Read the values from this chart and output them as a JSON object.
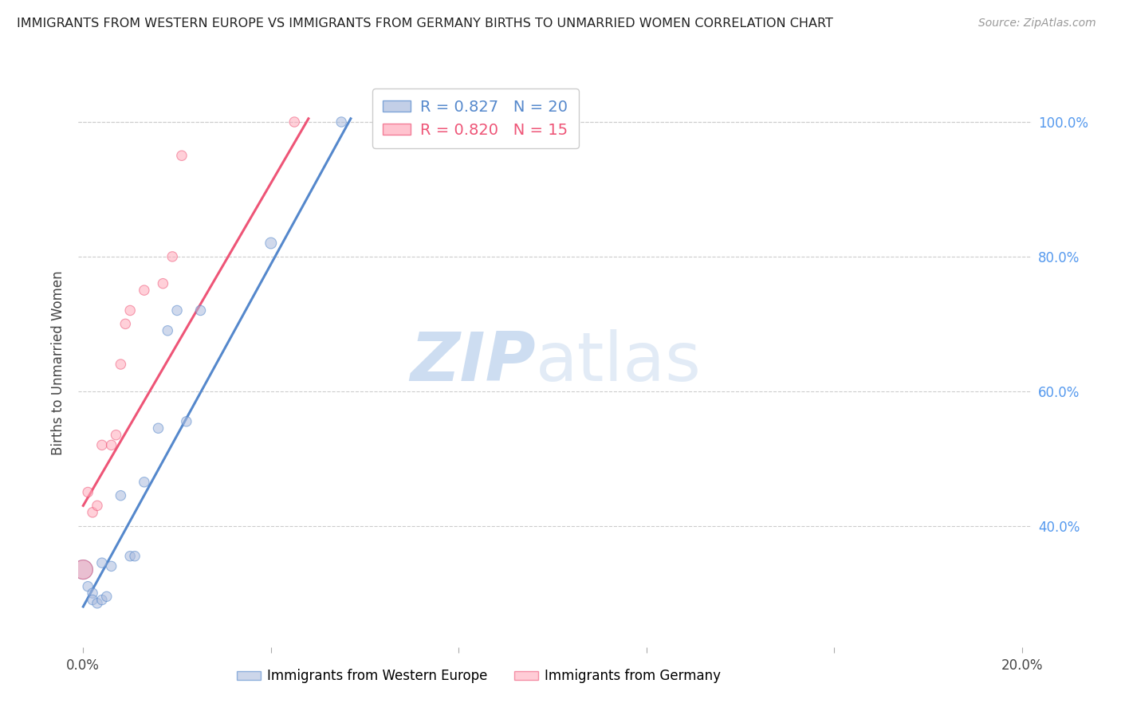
{
  "title": "IMMIGRANTS FROM WESTERN EUROPE VS IMMIGRANTS FROM GERMANY BIRTHS TO UNMARRIED WOMEN CORRELATION CHART",
  "source": "Source: ZipAtlas.com",
  "ylabel": "Births to Unmarried Women",
  "xlabel": "",
  "watermark_zip": "ZIP",
  "watermark_atlas": "atlas",
  "blue_color": "#aabbdd",
  "pink_color": "#ffaabb",
  "blue_line_color": "#5588cc",
  "pink_line_color": "#ee5577",
  "right_axis_color": "#5599ee",
  "legend_blue_r": "R = 0.827",
  "legend_blue_n": "N = 20",
  "legend_pink_r": "R = 0.820",
  "legend_pink_n": "N = 15",
  "blue_points_x": [
    0.0,
    0.001,
    0.002,
    0.002,
    0.003,
    0.004,
    0.004,
    0.005,
    0.006,
    0.008,
    0.01,
    0.011,
    0.013,
    0.016,
    0.018,
    0.02,
    0.022,
    0.025,
    0.04,
    0.055
  ],
  "blue_points_y": [
    0.335,
    0.31,
    0.3,
    0.29,
    0.285,
    0.29,
    0.345,
    0.295,
    0.34,
    0.445,
    0.355,
    0.355,
    0.465,
    0.545,
    0.69,
    0.72,
    0.555,
    0.72,
    0.82,
    1.0
  ],
  "blue_sizes": [
    300,
    80,
    80,
    80,
    80,
    80,
    80,
    80,
    80,
    80,
    80,
    80,
    80,
    80,
    80,
    80,
    80,
    80,
    100,
    80
  ],
  "pink_points_x": [
    0.0,
    0.001,
    0.002,
    0.003,
    0.004,
    0.006,
    0.007,
    0.008,
    0.009,
    0.01,
    0.013,
    0.017,
    0.019,
    0.021,
    0.045
  ],
  "pink_points_y": [
    0.335,
    0.45,
    0.42,
    0.43,
    0.52,
    0.52,
    0.535,
    0.64,
    0.7,
    0.72,
    0.75,
    0.76,
    0.8,
    0.95,
    1.0
  ],
  "pink_sizes": [
    300,
    80,
    80,
    80,
    80,
    80,
    80,
    80,
    80,
    80,
    80,
    80,
    80,
    80,
    80
  ],
  "blue_line_x": [
    0.0,
    0.057
  ],
  "blue_line_y": [
    0.28,
    1.005
  ],
  "pink_line_x": [
    0.0,
    0.048
  ],
  "pink_line_y": [
    0.43,
    1.005
  ],
  "xmin": -0.001,
  "xmax": 0.202,
  "ymin": 0.22,
  "ymax": 1.065,
  "xticks": [
    0.0,
    0.04,
    0.08,
    0.12,
    0.16,
    0.2
  ],
  "xtick_labels": [
    "0.0%",
    "",
    "",
    "",
    "",
    "20.0%"
  ],
  "ytick_right_values": [
    0.4,
    0.6,
    0.8,
    1.0
  ],
  "ytick_right_labels": [
    "40.0%",
    "60.0%",
    "80.0%",
    "100.0%"
  ],
  "grid_color": "#cccccc",
  "background_color": "#ffffff"
}
